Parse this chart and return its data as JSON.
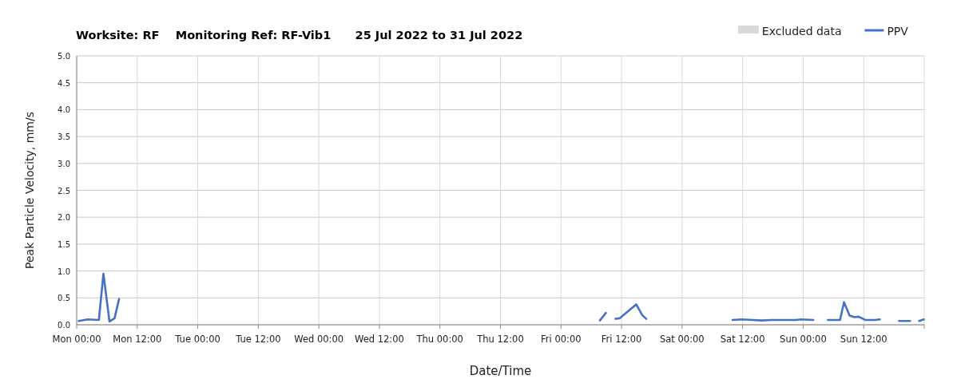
{
  "chart_data": {
    "type": "line",
    "title": "Worksite: RF    Monitoring Ref: RF-Vib1      25 Jul 2022 to 31 Jul 2022",
    "xlabel": "Date/Time",
    "ylabel": "Peak Particle Velocity, mm/s",
    "x": [
      "2022-07-25T00:24",
      "2022-07-25T02:12",
      "2022-07-25T04:24",
      "2022-07-25T05:18",
      "2022-07-25T06:30",
      "2022-07-25T07:30",
      "2022-07-25T08:24",
      "2022-07-27T02:00",
      "2022-07-29T07:42",
      "2022-07-29T08:54",
      "2022-07-29T09:48",
      "2022-07-29T10:48",
      "2022-07-29T11:36",
      "2022-07-29T14:54",
      "2022-07-29T16:06",
      "2022-07-29T16:54",
      "2022-07-30T00:00",
      "2022-07-30T10:00",
      "2022-07-30T11:48",
      "2022-07-30T14:00",
      "2022-07-30T15:48",
      "2022-07-30T17:42",
      "2022-07-30T22:30",
      "2022-07-30T23:36",
      "2022-07-31T02:00",
      "2022-07-31T03:30",
      "2022-07-31T04:54",
      "2022-07-31T07:18",
      "2022-07-31T08:06",
      "2022-07-31T09:12",
      "2022-07-31T10:12",
      "2022-07-31T11:00",
      "2022-07-31T12:18",
      "2022-07-31T14:12",
      "2022-07-31T15:12",
      "2022-07-31T17:00",
      "2022-07-31T19:00",
      "2022-07-31T21:12",
      "2022-07-31T22:00",
      "2022-07-31T23:00",
      "2022-07-31T23:54"
    ],
    "series": [
      {
        "name": "Excluded data",
        "type": "area",
        "color": "#d9d9d9",
        "values": [
          null,
          null,
          null,
          null,
          null,
          null,
          null,
          null,
          null,
          null,
          null,
          null,
          null,
          null,
          null,
          null,
          null,
          null,
          null,
          null,
          null,
          null,
          null,
          null,
          null,
          null,
          null,
          null,
          null,
          null,
          null,
          null,
          null,
          null,
          null,
          null,
          null,
          null,
          null,
          null,
          null
        ]
      },
      {
        "name": "PPV",
        "color": "#4472c4",
        "values": [
          0.07,
          0.1,
          0.09,
          0.95,
          0.06,
          0.12,
          0.48,
          null,
          0.08,
          0.22,
          null,
          0.11,
          0.12,
          0.38,
          0.18,
          0.11,
          null,
          0.09,
          0.1,
          0.09,
          0.08,
          0.09,
          0.09,
          0.1,
          0.09,
          null,
          0.09,
          0.09,
          0.42,
          0.17,
          0.14,
          0.15,
          0.09,
          0.09,
          0.1,
          null,
          0.07,
          0.07,
          null,
          0.07,
          0.1
        ]
      }
    ],
    "xlim": [
      "2022-07-25T00:00",
      "2022-08-01T00:00"
    ],
    "xticks": [
      {
        "value": "2022-07-25T00:00",
        "label": "Mon 00:00"
      },
      {
        "value": "2022-07-25T12:00",
        "label": "Mon 12:00"
      },
      {
        "value": "2022-07-26T00:00",
        "label": "Tue 00:00"
      },
      {
        "value": "2022-07-26T12:00",
        "label": "Tue 12:00"
      },
      {
        "value": "2022-07-27T00:00",
        "label": "Wed 00:00"
      },
      {
        "value": "2022-07-27T12:00",
        "label": "Wed 12:00"
      },
      {
        "value": "2022-07-28T00:00",
        "label": "Thu 00:00"
      },
      {
        "value": "2022-07-28T12:00",
        "label": "Thu 12:00"
      },
      {
        "value": "2022-07-29T00:00",
        "label": "Fri 00:00"
      },
      {
        "value": "2022-07-29T12:00",
        "label": "Fri 12:00"
      },
      {
        "value": "2022-07-30T00:00",
        "label": "Sat 00:00"
      },
      {
        "value": "2022-07-30T12:00",
        "label": "Sat 12:00"
      },
      {
        "value": "2022-07-31T00:00",
        "label": "Sun 00:00"
      },
      {
        "value": "2022-07-31T12:00",
        "label": "Sun 12:00"
      },
      {
        "value": "2022-08-01T00:00",
        "label": null
      }
    ],
    "ylim": [
      0,
      5
    ],
    "yticks": [
      {
        "value": 0,
        "label": "0.0"
      },
      {
        "value": 0.5,
        "label": "0.5"
      },
      {
        "value": 1,
        "label": "1.0"
      },
      {
        "value": 1.5,
        "label": "1.5"
      },
      {
        "value": 2,
        "label": "2.0"
      },
      {
        "value": 2.5,
        "label": "2.5"
      },
      {
        "value": 3,
        "label": "3.0"
      },
      {
        "value": 3.5,
        "label": "3.5"
      },
      {
        "value": 4,
        "label": "4.0"
      },
      {
        "value": 4.5,
        "label": "4.5"
      },
      {
        "value": 5,
        "label": "5.0"
      }
    ],
    "grid": true,
    "legend": "top right",
    "line_style": "solid",
    "marker": "none"
  }
}
